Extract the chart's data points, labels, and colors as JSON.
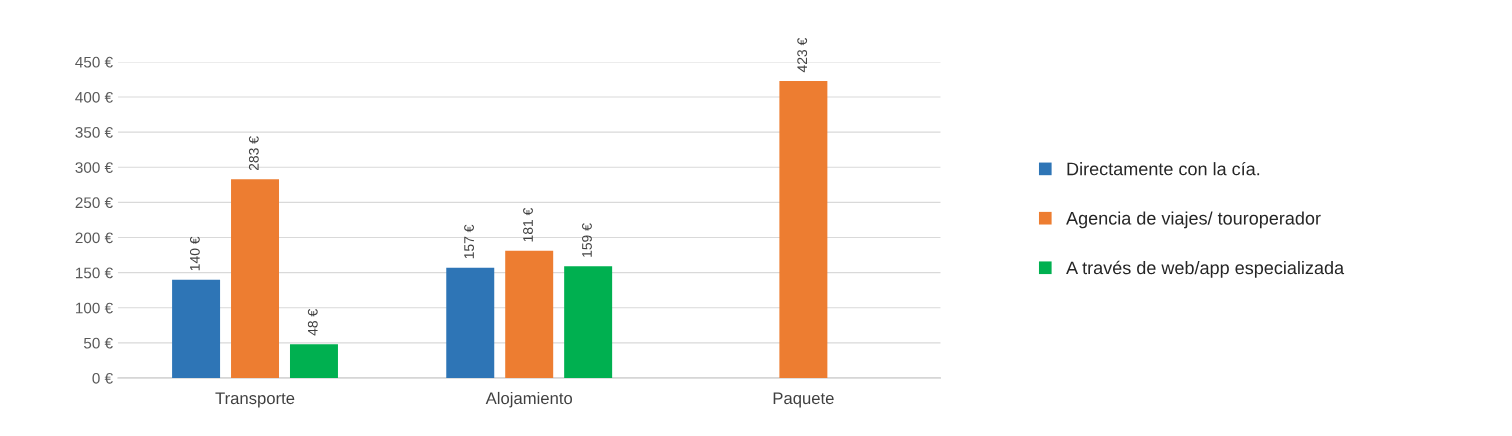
{
  "chart_data": {
    "type": "bar",
    "categories": [
      "Transporte",
      "Alojamiento",
      "Paquete"
    ],
    "series": [
      {
        "name": "Directamente con la cía.",
        "color": "#2e75b6",
        "values": [
          140,
          157,
          null
        ],
        "value_labels": [
          "140 €",
          "157 €",
          null
        ]
      },
      {
        "name": "Agencia de viajes/ touroperador",
        "color": "#ed7d31",
        "values": [
          283,
          181,
          423
        ],
        "value_labels": [
          "283 €",
          "181 €",
          "423 €"
        ]
      },
      {
        "name": "A través de web/app especializada",
        "color": "#00b050",
        "values": [
          48,
          159,
          null
        ],
        "value_labels": [
          "48 €",
          "159 €",
          null
        ]
      }
    ],
    "ylim": [
      0,
      450
    ],
    "yticks": [
      {
        "value": 0,
        "label": "0 €"
      },
      {
        "value": 50,
        "label": "50 €"
      },
      {
        "value": 100,
        "label": "100 €"
      },
      {
        "value": 150,
        "label": "150 €"
      },
      {
        "value": 200,
        "label": "200 €"
      },
      {
        "value": 250,
        "label": "250 €"
      },
      {
        "value": 300,
        "label": "300 €"
      },
      {
        "value": 350,
        "label": "350 €"
      },
      {
        "value": 400,
        "label": "400 €"
      },
      {
        "value": 450,
        "label": "450 €"
      }
    ],
    "grid": "y",
    "legend": "right"
  }
}
